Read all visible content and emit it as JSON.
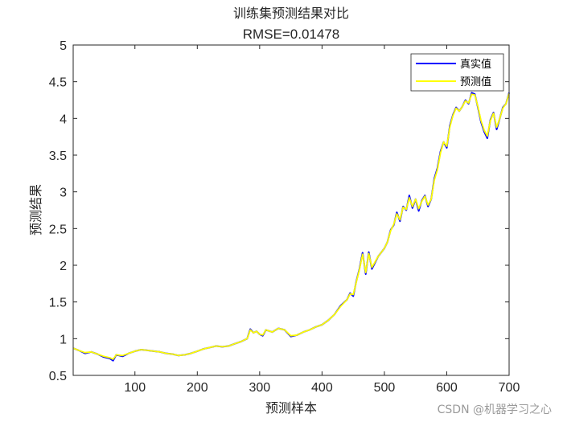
{
  "chart_data": {
    "type": "line",
    "title": "训练集预测结果对比",
    "subtitle": "RMSE=0.01478",
    "xlabel": "预测样本",
    "ylabel": "预测结果",
    "xlim": [
      1,
      700
    ],
    "ylim": [
      0.5,
      5
    ],
    "xticks": [
      100,
      200,
      300,
      400,
      500,
      600,
      700
    ],
    "yticks": [
      0.5,
      1,
      1.5,
      2,
      2.5,
      3,
      3.5,
      4,
      4.5,
      5
    ],
    "ytick_labels": [
      "0.5",
      "1",
      "1.5",
      "2",
      "2.5",
      "3",
      "3.5",
      "4",
      "4.5",
      "5"
    ],
    "grid": false,
    "legend_position": "top-right",
    "series": [
      {
        "name": "真实值",
        "color": "#0000ff",
        "x": [
          1,
          10,
          20,
          30,
          40,
          50,
          60,
          65,
          70,
          80,
          90,
          100,
          110,
          120,
          130,
          140,
          150,
          160,
          170,
          180,
          190,
          200,
          210,
          220,
          230,
          240,
          250,
          260,
          270,
          280,
          285,
          290,
          295,
          300,
          305,
          310,
          320,
          330,
          340,
          350,
          360,
          370,
          380,
          390,
          400,
          410,
          420,
          430,
          440,
          445,
          450,
          455,
          460,
          465,
          470,
          475,
          480,
          490,
          500,
          505,
          510,
          515,
          520,
          525,
          530,
          535,
          540,
          545,
          550,
          555,
          560,
          565,
          570,
          575,
          580,
          585,
          590,
          595,
          600,
          605,
          610,
          615,
          620,
          625,
          630,
          635,
          640,
          645,
          650,
          655,
          660,
          665,
          670,
          675,
          680,
          685,
          690,
          695,
          700
        ],
        "values": [
          0.87,
          0.84,
          0.8,
          0.82,
          0.79,
          0.75,
          0.73,
          0.7,
          0.78,
          0.76,
          0.8,
          0.83,
          0.85,
          0.84,
          0.83,
          0.82,
          0.8,
          0.79,
          0.77,
          0.78,
          0.8,
          0.83,
          0.86,
          0.88,
          0.9,
          0.89,
          0.9,
          0.93,
          0.96,
          1.0,
          1.13,
          1.08,
          1.1,
          1.06,
          1.04,
          1.12,
          1.09,
          1.14,
          1.12,
          1.03,
          1.05,
          1.09,
          1.12,
          1.16,
          1.19,
          1.25,
          1.33,
          1.45,
          1.53,
          1.62,
          1.58,
          1.78,
          1.95,
          2.17,
          1.88,
          2.18,
          1.95,
          2.12,
          2.23,
          2.32,
          2.48,
          2.55,
          2.72,
          2.6,
          2.8,
          2.75,
          2.95,
          2.78,
          2.9,
          2.74,
          2.88,
          2.95,
          2.8,
          2.9,
          3.18,
          3.32,
          3.55,
          3.68,
          3.6,
          3.9,
          4.05,
          4.15,
          4.1,
          4.16,
          4.25,
          4.2,
          4.35,
          4.33,
          4.15,
          3.95,
          3.82,
          3.73,
          3.98,
          4.08,
          3.85,
          4.0,
          4.15,
          4.2,
          4.35
        ]
      },
      {
        "name": "预测值",
        "color": "#ffff00",
        "x": [
          1,
          10,
          20,
          30,
          40,
          50,
          60,
          65,
          70,
          80,
          90,
          100,
          110,
          120,
          130,
          140,
          150,
          160,
          170,
          180,
          190,
          200,
          210,
          220,
          230,
          240,
          250,
          260,
          270,
          280,
          285,
          290,
          295,
          300,
          305,
          310,
          320,
          330,
          340,
          350,
          360,
          370,
          380,
          390,
          400,
          410,
          420,
          430,
          440,
          445,
          450,
          455,
          460,
          465,
          470,
          475,
          480,
          490,
          500,
          505,
          510,
          515,
          520,
          525,
          530,
          535,
          540,
          545,
          550,
          555,
          560,
          565,
          570,
          575,
          580,
          585,
          590,
          595,
          600,
          605,
          610,
          615,
          620,
          625,
          630,
          635,
          640,
          645,
          650,
          655,
          660,
          665,
          670,
          675,
          680,
          685,
          690,
          695,
          700
        ],
        "values": [
          0.87,
          0.84,
          0.81,
          0.82,
          0.79,
          0.76,
          0.74,
          0.72,
          0.78,
          0.77,
          0.8,
          0.83,
          0.85,
          0.84,
          0.83,
          0.82,
          0.8,
          0.79,
          0.77,
          0.78,
          0.8,
          0.83,
          0.86,
          0.88,
          0.9,
          0.89,
          0.9,
          0.93,
          0.96,
          1.0,
          1.12,
          1.08,
          1.1,
          1.06,
          1.05,
          1.12,
          1.09,
          1.14,
          1.12,
          1.04,
          1.05,
          1.09,
          1.12,
          1.16,
          1.19,
          1.25,
          1.33,
          1.44,
          1.53,
          1.61,
          1.6,
          1.77,
          1.94,
          2.15,
          1.9,
          2.16,
          1.97,
          2.12,
          2.23,
          2.32,
          2.47,
          2.56,
          2.7,
          2.62,
          2.79,
          2.76,
          2.92,
          2.8,
          2.9,
          2.77,
          2.87,
          2.94,
          2.82,
          2.9,
          3.16,
          3.3,
          3.53,
          3.68,
          3.62,
          3.88,
          4.04,
          4.14,
          4.1,
          4.16,
          4.24,
          4.21,
          4.33,
          4.32,
          4.16,
          3.97,
          3.84,
          3.76,
          3.97,
          4.07,
          3.88,
          4.0,
          4.14,
          4.2,
          4.34
        ]
      }
    ]
  },
  "watermark": "CSDN @机器学习之心"
}
